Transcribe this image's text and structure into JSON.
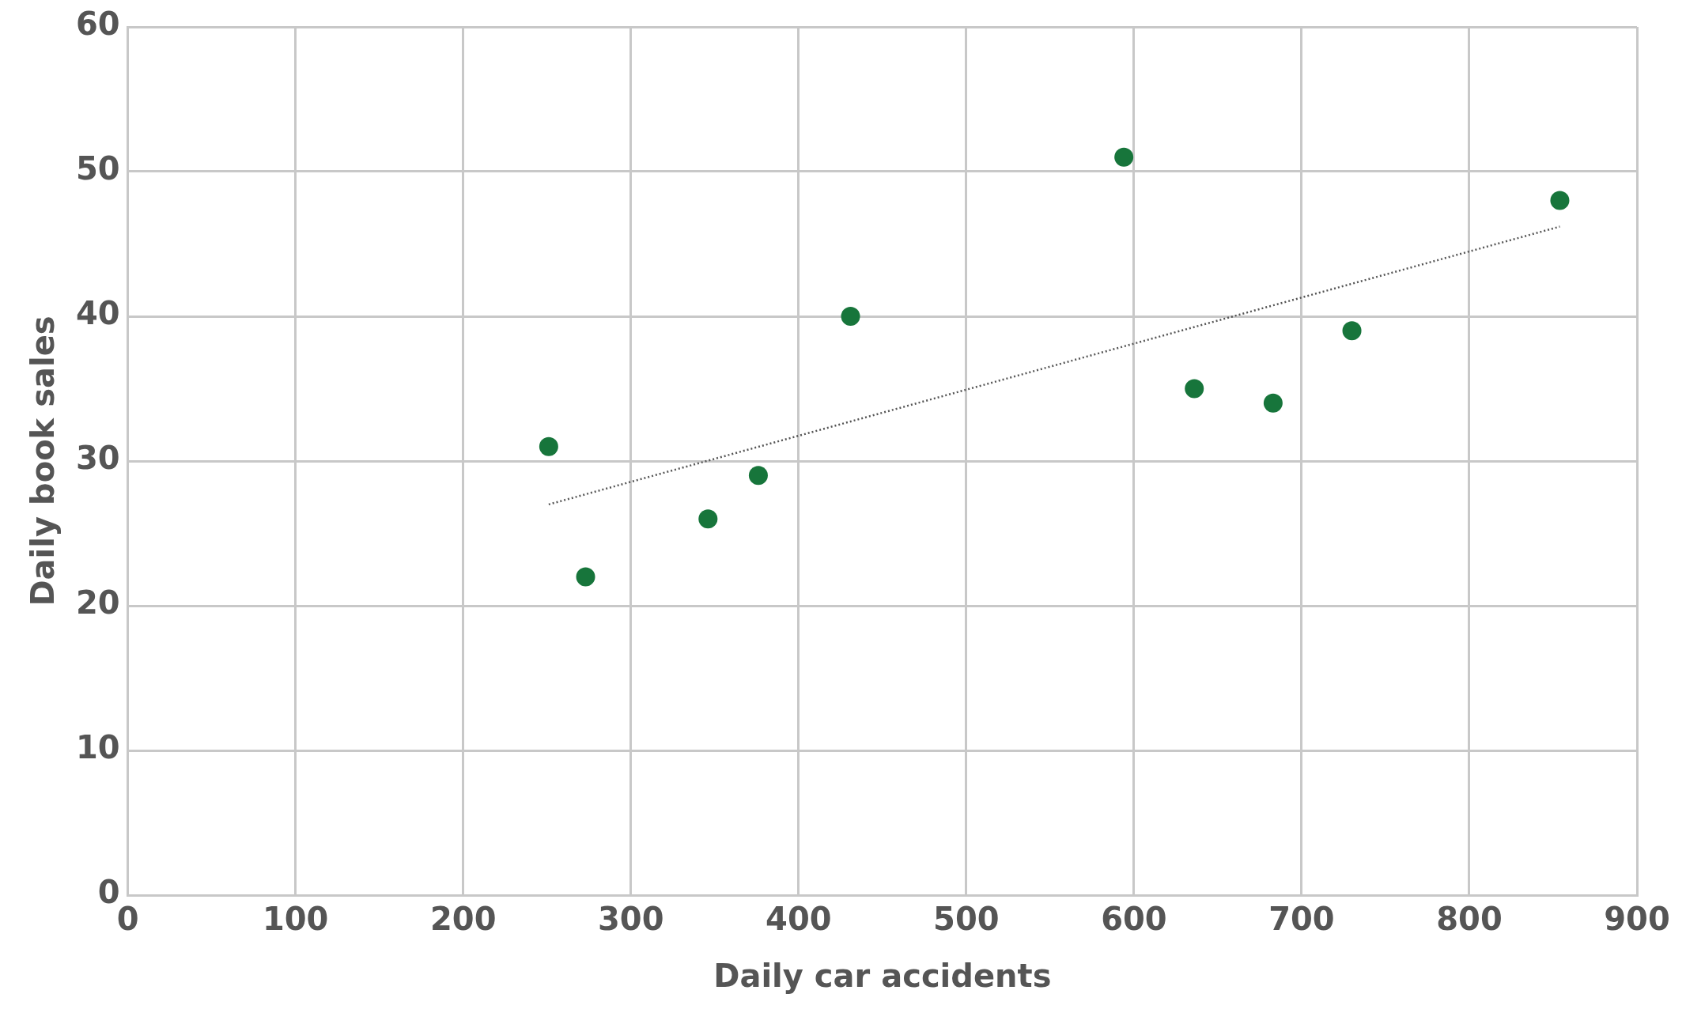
{
  "chart_data": {
    "type": "scatter",
    "xlabel": "Daily car accidents",
    "ylabel": "Daily book sales",
    "x": [
      251,
      273,
      346,
      376,
      431,
      594,
      636,
      683,
      730,
      854
    ],
    "series": [
      {
        "type": "scatter",
        "color": "#17753b",
        "marker": "circle",
        "values": [
          31,
          22,
          26,
          29,
          40,
          51,
          35,
          34,
          39,
          48
        ]
      },
      {
        "type": "line",
        "color": "#555555",
        "line_style": "dotted",
        "marker": "none",
        "x": [
          251,
          854
        ],
        "values": [
          27,
          46.2
        ]
      }
    ],
    "xlim": [
      0,
      900
    ],
    "xticks": [
      0,
      100,
      200,
      300,
      400,
      500,
      600,
      700,
      800,
      900
    ],
    "ylim": [
      0,
      60
    ],
    "yticks": [
      0,
      10,
      20,
      30,
      40,
      50,
      60
    ],
    "grid": true,
    "legend": false
  }
}
